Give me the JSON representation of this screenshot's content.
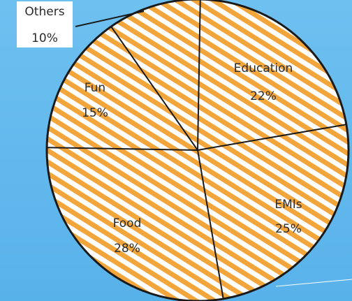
{
  "chart_data": {
    "type": "pie",
    "slices": [
      {
        "label": "Education",
        "value": 22,
        "value_label": "22%"
      },
      {
        "label": "EMIs",
        "value": 25,
        "value_label": "25%"
      },
      {
        "label": "Food",
        "value": 28,
        "value_label": "28%"
      },
      {
        "label": "Fun",
        "value": 15,
        "value_label": "15%"
      },
      {
        "label": "Others",
        "value": 10,
        "value_label": "10%"
      }
    ],
    "legend": "none",
    "colors": {
      "slice_fill": "#ffffff",
      "hatch": "#f2a53a",
      "outline": "#1a1a1a",
      "background": "#62b8ec"
    }
  }
}
